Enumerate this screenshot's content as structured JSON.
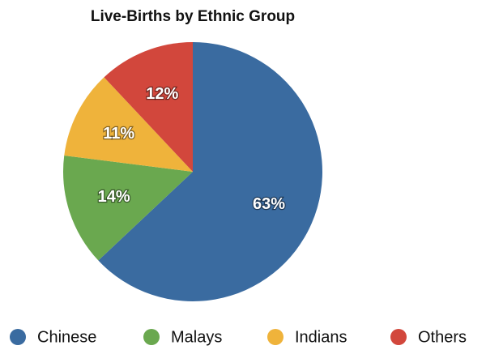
{
  "chart_data": {
    "type": "pie",
    "title": "Live-Births by Ethnic Group",
    "categories": [
      "Chinese",
      "Malays",
      "Indians",
      "Others"
    ],
    "values": [
      63,
      14,
      11,
      12
    ],
    "value_labels": [
      "63%",
      "14%",
      "11%",
      "12%"
    ],
    "colors": [
      "#3a6ba0",
      "#6aa84f",
      "#efb33b",
      "#d2473c"
    ],
    "legend": "bottom"
  }
}
